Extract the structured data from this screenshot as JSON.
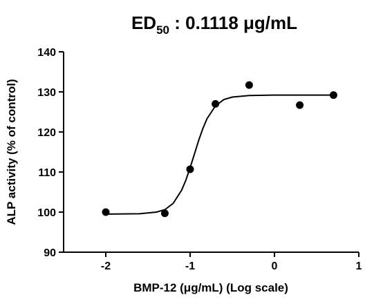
{
  "chart_data": {
    "type": "scatter",
    "title": {
      "main": "ED",
      "subscript": "50",
      "rest": " : 0.1118 μg/mL"
    },
    "x_label": "BMP-12 (μg/mL) (Log scale)",
    "y_label": "ALP activity (% of control)",
    "xlim": [
      -2.5,
      1
    ],
    "ylim": [
      90,
      140
    ],
    "xticks": [
      -2,
      -1,
      0,
      1
    ],
    "yticks": [
      90,
      100,
      110,
      120,
      130,
      140
    ],
    "series": [
      {
        "name": "Measured",
        "color": "#000000",
        "x": [
          -2,
          -1.3,
          -1,
          -0.7,
          -0.3,
          0.3,
          0.7
        ],
        "values": [
          100,
          99.7,
          110.7,
          127,
          131.7,
          126.7,
          129.2
        ]
      },
      {
        "name": "Fit",
        "color": "#000000",
        "x": [
          -2,
          -1.6,
          -1.4,
          -1.3,
          -1.2,
          -1.1,
          -1.05,
          -1,
          -0.95,
          -0.9,
          -0.85,
          -0.8,
          -0.7,
          -0.6,
          -0.5,
          -0.3,
          0,
          0.3,
          0.7
        ],
        "values": [
          99.5,
          99.6,
          100.0,
          100.6,
          102.2,
          105.5,
          108.0,
          111.1,
          114.4,
          117.8,
          120.8,
          123.3,
          126.5,
          128.1,
          128.7,
          129.1,
          129.2,
          129.2,
          129.2
        ]
      }
    ]
  }
}
